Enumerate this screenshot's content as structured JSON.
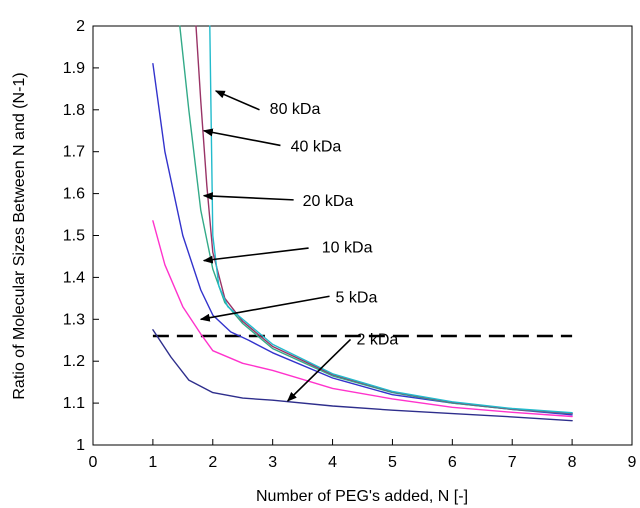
{
  "chart_data": {
    "type": "line",
    "title": "",
    "xlabel": "Number of PEG's added, N [-]",
    "ylabel": "Ratio of Molecular Sizes Between N and (N-1)",
    "xlim": [
      0,
      9
    ],
    "ylim": [
      1,
      2
    ],
    "xticks": [
      "0",
      "1",
      "2",
      "3",
      "4",
      "5",
      "6",
      "7",
      "8",
      "9"
    ],
    "yticks": [
      "1",
      "1.1",
      "1.2",
      "1.3",
      "1.4",
      "1.5",
      "1.6",
      "1.7",
      "1.8",
      "1.9",
      "2"
    ],
    "grid": false,
    "legend": "none",
    "series": [
      {
        "name": "2 kDa",
        "color": "#2e2e8c",
        "x": [
          1,
          1.3,
          1.6,
          2,
          2.5,
          3,
          4,
          5,
          6,
          7,
          8
        ],
        "y": [
          1.275,
          1.21,
          1.155,
          1.125,
          1.112,
          1.107,
          1.093,
          1.083,
          1.075,
          1.067,
          1.058
        ]
      },
      {
        "name": "5 kDa",
        "color": "#ff33cc",
        "x": [
          1,
          1.2,
          1.5,
          1.8,
          2,
          2.5,
          3,
          4,
          5,
          6,
          7,
          8
        ],
        "y": [
          1.535,
          1.43,
          1.33,
          1.265,
          1.225,
          1.195,
          1.178,
          1.135,
          1.11,
          1.09,
          1.078,
          1.068
        ]
      },
      {
        "name": "10 kDa",
        "color": "#3333cc",
        "x": [
          1,
          1.2,
          1.5,
          1.8,
          2,
          2.3,
          2.6,
          3,
          4,
          5,
          6,
          7,
          8
        ],
        "y": [
          1.91,
          1.7,
          1.5,
          1.37,
          1.31,
          1.27,
          1.25,
          1.22,
          1.16,
          1.12,
          1.1,
          1.085,
          1.072
        ]
      },
      {
        "name": "20 kDa",
        "color": "#33aa88",
        "x": [
          1.45,
          1.6,
          1.8,
          2,
          2.2,
          2.5,
          3,
          4,
          5,
          6,
          7,
          8
        ],
        "y": [
          2,
          1.8,
          1.56,
          1.42,
          1.34,
          1.29,
          1.23,
          1.165,
          1.125,
          1.1,
          1.085,
          1.075
        ]
      },
      {
        "name": "40 kDa",
        "color": "#993366",
        "x": [
          1.72,
          1.8,
          1.9,
          2,
          2.2,
          2.5,
          3,
          4,
          5,
          6,
          7,
          8
        ],
        "y": [
          2,
          1.82,
          1.62,
          1.46,
          1.35,
          1.295,
          1.235,
          1.168,
          1.127,
          1.102,
          1.086,
          1.076
        ]
      },
      {
        "name": "80 kDa",
        "color": "#22bbcc",
        "x": [
          1.95,
          1.97,
          2,
          2.1,
          2.25,
          2.5,
          3,
          4,
          5,
          6,
          7,
          8
        ],
        "y": [
          2,
          1.8,
          1.5,
          1.38,
          1.33,
          1.3,
          1.24,
          1.17,
          1.128,
          1.103,
          1.087,
          1.077
        ]
      }
    ],
    "reference_line": {
      "y": 1.26,
      "x_start": 1,
      "x_end": 8,
      "style": "dashed",
      "color": "#000000"
    },
    "annotations": [
      {
        "text": "80 kDa",
        "label_x": 2.95,
        "label_y": 1.79,
        "arrow_from": [
          2.78,
          1.8
        ],
        "arrow_to": [
          2.05,
          1.845
        ]
      },
      {
        "text": "40 kDa",
        "label_x": 3.3,
        "label_y": 1.7,
        "arrow_from": [
          3.13,
          1.715
        ],
        "arrow_to": [
          1.85,
          1.75
        ]
      },
      {
        "text": "20 kDa",
        "label_x": 3.5,
        "label_y": 1.57,
        "arrow_from": [
          3.35,
          1.585
        ],
        "arrow_to": [
          1.85,
          1.595
        ]
      },
      {
        "text": "10 kDa",
        "label_x": 3.82,
        "label_y": 1.46,
        "arrow_from": [
          3.6,
          1.47
        ],
        "arrow_to": [
          1.85,
          1.44
        ]
      },
      {
        "text": "5 kDa",
        "label_x": 4.05,
        "label_y": 1.34,
        "arrow_from": [
          3.95,
          1.355
        ],
        "arrow_to": [
          1.8,
          1.3
        ]
      },
      {
        "text": "2 kDa",
        "label_x": 4.4,
        "label_y": 1.24,
        "arrow_from": [
          4.3,
          1.252
        ],
        "arrow_to": [
          3.25,
          1.105
        ]
      }
    ]
  }
}
